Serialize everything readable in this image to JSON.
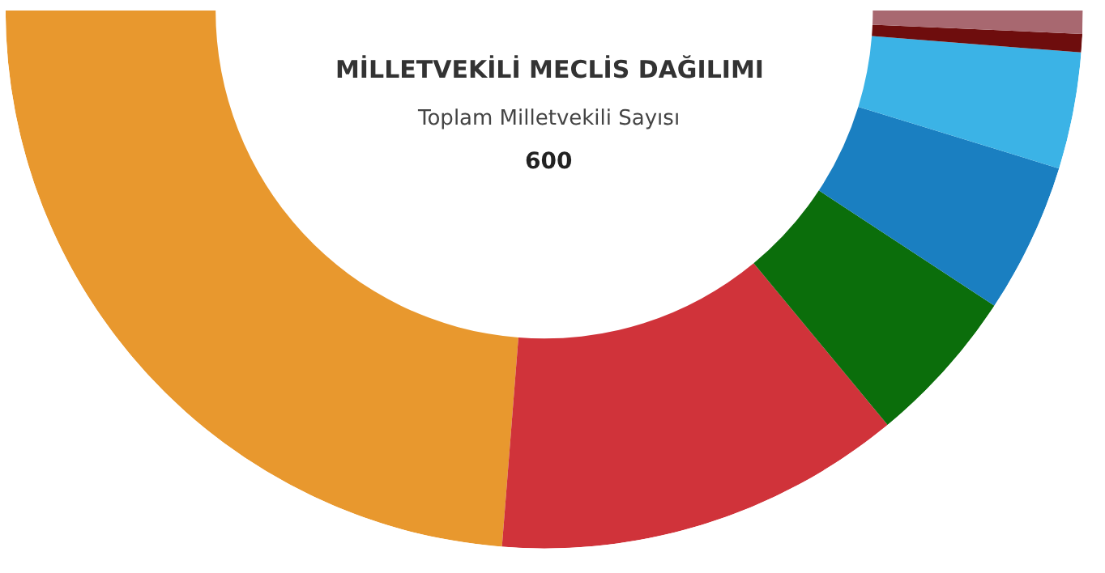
{
  "chart_data": {
    "type": "donut",
    "title": "MİLLETVEKİLİ MECLİS DAĞILIMI",
    "subtitle": "Toplam Milletvekili Sayısı",
    "annotations": [
      "600"
    ],
    "categories": [
      null,
      null,
      null,
      null,
      null,
      null,
      null
    ],
    "values": [
      47.5,
      24.5,
      9.5,
      9,
      7,
      1.1,
      1.4
    ],
    "colors": [
      "#e8982e",
      "#d0333a",
      "#0b6e0b",
      "#1a7fc1",
      "#3bb3e6",
      "#6e0d0d",
      "#a86870"
    ]
  }
}
